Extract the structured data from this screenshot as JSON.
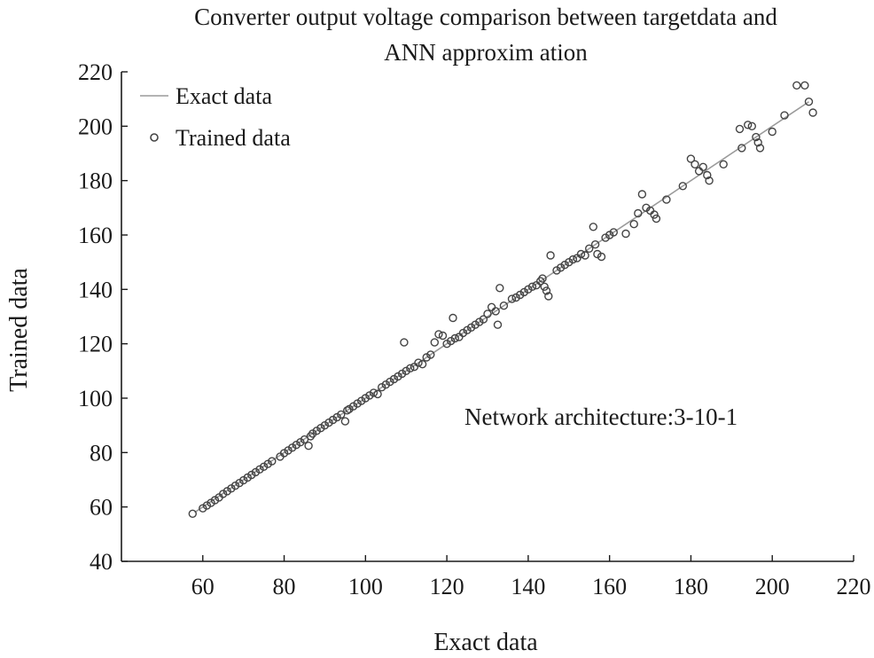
{
  "chart_data": {
    "type": "scatter",
    "title": "Converter output voltage comparison between targetdata and ANN approxim ation",
    "title_lines": [
      "Converter output voltage comparison between targetdata and",
      "ANN approxim ation"
    ],
    "xlabel": "Exact data",
    "ylabel": "Trained data",
    "xlim": [
      40,
      220
    ],
    "ylim": [
      40,
      220
    ],
    "x_ticks": [
      60,
      80,
      100,
      120,
      140,
      160,
      180,
      200,
      220
    ],
    "y_ticks": [
      40,
      60,
      80,
      100,
      120,
      140,
      160,
      180,
      200,
      220
    ],
    "grid": false,
    "legend_position": "top-left",
    "annotation": "Network architecture:3-10-1",
    "colors": {
      "line": "#9a9a9a",
      "marker": "#444444",
      "axis": "#1a1a1a"
    },
    "series": [
      {
        "name": "Exact data",
        "kind": "line",
        "x": [
          58,
          209
        ],
        "y": [
          58,
          209
        ]
      },
      {
        "name": "Trained data",
        "kind": "scatter",
        "points": [
          [
            57.5,
            57.5
          ],
          [
            60,
            59.5
          ],
          [
            61,
            60.5
          ],
          [
            62,
            61.5
          ],
          [
            63,
            62.5
          ],
          [
            64,
            63.5
          ],
          [
            65,
            64.8
          ],
          [
            66,
            65.8
          ],
          [
            67,
            66.8
          ],
          [
            68,
            67.8
          ],
          [
            69,
            68.8
          ],
          [
            70,
            69.8
          ],
          [
            71,
            70.8
          ],
          [
            72,
            71.8
          ],
          [
            73,
            72.8
          ],
          [
            74,
            73.8
          ],
          [
            75,
            74.8
          ],
          [
            76,
            75.8
          ],
          [
            77,
            76.8
          ],
          [
            79,
            78.5
          ],
          [
            80,
            79.8
          ],
          [
            81,
            80.8
          ],
          [
            82,
            81.8
          ],
          [
            83,
            82.8
          ],
          [
            84,
            83.8
          ],
          [
            85,
            84.8
          ],
          [
            86,
            82.5
          ],
          [
            86.5,
            86
          ],
          [
            87,
            87
          ],
          [
            88,
            88
          ],
          [
            89,
            89
          ],
          [
            90,
            90
          ],
          [
            91,
            91
          ],
          [
            92,
            92
          ],
          [
            93,
            93
          ],
          [
            94,
            94
          ],
          [
            95,
            91.5
          ],
          [
            95.5,
            95.5
          ],
          [
            96,
            96
          ],
          [
            97,
            97
          ],
          [
            98,
            98
          ],
          [
            99,
            99
          ],
          [
            100,
            100
          ],
          [
            101,
            101
          ],
          [
            102,
            102
          ],
          [
            103,
            101.5
          ],
          [
            104,
            104
          ],
          [
            105,
            105
          ],
          [
            106,
            106
          ],
          [
            107,
            107
          ],
          [
            108,
            108
          ],
          [
            109,
            109
          ],
          [
            109.5,
            120.5
          ],
          [
            110,
            110
          ],
          [
            111,
            111
          ],
          [
            112,
            111.5
          ],
          [
            113,
            113
          ],
          [
            114,
            112.5
          ],
          [
            115,
            115
          ],
          [
            116,
            116
          ],
          [
            117,
            120.5
          ],
          [
            118,
            123.5
          ],
          [
            119,
            123
          ],
          [
            120,
            120
          ],
          [
            121,
            121
          ],
          [
            121.5,
            129.5
          ],
          [
            122,
            122
          ],
          [
            123,
            122.5
          ],
          [
            124,
            124
          ],
          [
            125,
            125
          ],
          [
            126,
            126
          ],
          [
            127,
            127
          ],
          [
            128,
            128
          ],
          [
            129,
            129
          ],
          [
            130,
            131
          ],
          [
            131,
            133.5
          ],
          [
            132,
            132
          ],
          [
            132.5,
            127
          ],
          [
            133,
            140.5
          ],
          [
            134,
            134
          ],
          [
            136,
            136.5
          ],
          [
            137,
            137
          ],
          [
            138,
            138
          ],
          [
            139,
            139
          ],
          [
            140,
            140
          ],
          [
            141,
            141
          ],
          [
            142,
            141.5
          ],
          [
            143,
            143
          ],
          [
            143.5,
            144
          ],
          [
            144,
            141
          ],
          [
            144.5,
            139.5
          ],
          [
            145,
            137.5
          ],
          [
            145.5,
            152.5
          ],
          [
            147,
            147
          ],
          [
            148,
            148
          ],
          [
            149,
            149
          ],
          [
            150,
            150
          ],
          [
            151,
            151
          ],
          [
            152,
            151.5
          ],
          [
            153,
            153
          ],
          [
            154,
            152.5
          ],
          [
            155,
            155
          ],
          [
            156,
            163
          ],
          [
            156.5,
            156.5
          ],
          [
            157,
            153
          ],
          [
            158,
            152
          ],
          [
            159,
            159
          ],
          [
            160,
            160
          ],
          [
            161,
            161
          ],
          [
            164,
            160.5
          ],
          [
            166,
            164
          ],
          [
            167,
            168
          ],
          [
            168,
            175
          ],
          [
            169,
            170
          ],
          [
            170,
            169
          ],
          [
            171,
            167.5
          ],
          [
            171.5,
            166
          ],
          [
            174,
            173
          ],
          [
            178,
            178
          ],
          [
            180,
            188
          ],
          [
            181,
            186
          ],
          [
            182,
            183.5
          ],
          [
            183,
            185
          ],
          [
            184,
            182
          ],
          [
            184.5,
            180
          ],
          [
            188,
            186
          ],
          [
            192,
            199
          ],
          [
            192.5,
            192
          ],
          [
            194,
            200.5
          ],
          [
            195,
            200
          ],
          [
            196,
            196
          ],
          [
            196.5,
            194
          ],
          [
            197,
            192
          ],
          [
            200,
            198
          ],
          [
            203,
            204
          ],
          [
            206,
            215
          ],
          [
            208,
            215
          ],
          [
            209,
            209
          ],
          [
            210,
            205
          ]
        ]
      }
    ]
  }
}
